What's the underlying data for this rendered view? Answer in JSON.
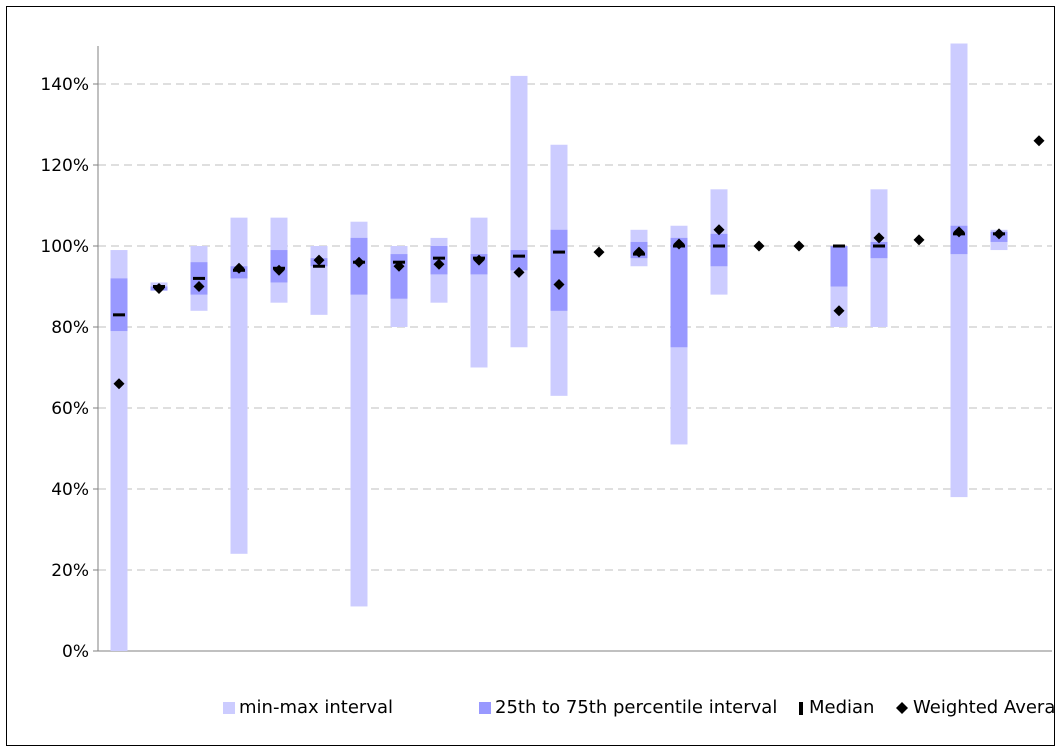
{
  "chart_data": {
    "type": "box-range",
    "title": "",
    "xlabel": "",
    "ylabel": "",
    "ylim": [
      0,
      1.5
    ],
    "y_ticks": [
      "0%",
      "20%",
      "40%",
      "60%",
      "80%",
      "100%",
      "120%",
      "140%"
    ],
    "grid": "horizontal",
    "legend_position": "bottom",
    "colors": {
      "minmax": "#ccccff",
      "iqr": "#9999ff",
      "median": "#000000",
      "weighted_average": "#000000",
      "gridline": "#bfbfbf"
    },
    "series": [
      {
        "name": "min-max interval"
      },
      {
        "name": "25th to 75th percentile interval"
      },
      {
        "name": "Median"
      },
      {
        "name": "Weighted Average"
      }
    ],
    "items": [
      {
        "min": 0.0,
        "max": 0.99,
        "q1": 0.79,
        "q3": 0.92,
        "median": 0.83,
        "wavg": 0.66
      },
      {
        "min": 0.89,
        "max": 0.91,
        "q1": 0.89,
        "q3": 0.9,
        "median": 0.9,
        "wavg": 0.895
      },
      {
        "min": 0.84,
        "max": 1.0,
        "q1": 0.88,
        "q3": 0.96,
        "median": 0.92,
        "wavg": 0.9
      },
      {
        "min": 0.24,
        "max": 1.07,
        "q1": 0.92,
        "q3": 0.95,
        "median": 0.94,
        "wavg": 0.945
      },
      {
        "min": 0.86,
        "max": 1.07,
        "q1": 0.91,
        "q3": 0.99,
        "median": 0.945,
        "wavg": 0.94
      },
      {
        "min": 0.83,
        "max": 1.0,
        "q1": 0.95,
        "q3": 0.97,
        "median": 0.95,
        "wavg": 0.965
      },
      {
        "min": 0.11,
        "max": 1.06,
        "q1": 0.88,
        "q3": 1.02,
        "median": 0.96,
        "wavg": 0.96
      },
      {
        "min": 0.8,
        "max": 1.0,
        "q1": 0.87,
        "q3": 0.98,
        "median": 0.96,
        "wavg": 0.95
      },
      {
        "min": 0.86,
        "max": 1.02,
        "q1": 0.93,
        "q3": 1.0,
        "median": 0.97,
        "wavg": 0.955
      },
      {
        "min": 0.7,
        "max": 1.07,
        "q1": 0.93,
        "q3": 0.98,
        "median": 0.97,
        "wavg": 0.965
      },
      {
        "min": 0.75,
        "max": 1.42,
        "q1": 0.94,
        "q3": 0.99,
        "median": 0.975,
        "wavg": 0.935
      },
      {
        "min": 0.63,
        "max": 1.25,
        "q1": 0.84,
        "q3": 1.04,
        "median": 0.985,
        "wavg": 0.905
      },
      {
        "min": null,
        "max": null,
        "q1": null,
        "q3": null,
        "median": null,
        "wavg": 0.985
      },
      {
        "min": 0.95,
        "max": 1.04,
        "q1": 0.97,
        "q3": 1.01,
        "median": 0.98,
        "wavg": 0.985
      },
      {
        "min": 0.51,
        "max": 1.05,
        "q1": 0.75,
        "q3": 1.02,
        "median": 1.0,
        "wavg": 1.005
      },
      {
        "min": 0.88,
        "max": 1.14,
        "q1": 0.95,
        "q3": 1.03,
        "median": 1.0,
        "wavg": 1.04
      },
      {
        "min": null,
        "max": null,
        "q1": null,
        "q3": null,
        "median": null,
        "wavg": 1.0
      },
      {
        "min": null,
        "max": null,
        "q1": null,
        "q3": null,
        "median": null,
        "wavg": 1.0
      },
      {
        "min": 0.8,
        "max": 1.0,
        "q1": 0.9,
        "q3": 1.0,
        "median": 1.0,
        "wavg": 0.84
      },
      {
        "min": 0.8,
        "max": 1.14,
        "q1": 0.97,
        "q3": 1.01,
        "median": 1.0,
        "wavg": 1.02
      },
      {
        "min": null,
        "max": null,
        "q1": null,
        "q3": null,
        "median": null,
        "wavg": 1.015
      },
      {
        "min": 0.38,
        "max": 1.5,
        "q1": 0.98,
        "q3": 1.05,
        "median": 1.03,
        "wavg": 1.035
      },
      {
        "min": 0.99,
        "max": 1.04,
        "q1": 1.01,
        "q3": 1.035,
        "median": 1.03,
        "wavg": 1.03
      },
      {
        "min": null,
        "max": null,
        "q1": null,
        "q3": null,
        "median": null,
        "wavg": 1.26
      }
    ]
  }
}
